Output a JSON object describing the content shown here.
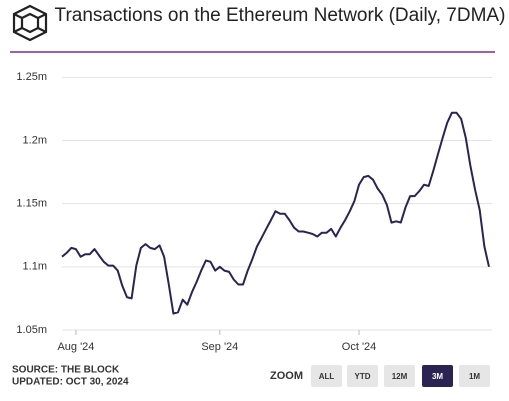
{
  "chart_data": {
    "type": "line",
    "title": "Transactions on the Ethereum Network (Daily, 7DMA)",
    "categories": [
      null,
      null,
      null,
      "Aug '24",
      null,
      null,
      null,
      null,
      null,
      null,
      null,
      null,
      null,
      null,
      null,
      null,
      null,
      null,
      null,
      null,
      null,
      null,
      null,
      null,
      null,
      null,
      null,
      null,
      null,
      null,
      null,
      null,
      null,
      null,
      "Sep '24",
      null,
      null,
      null,
      null,
      null,
      null,
      null,
      null,
      null,
      null,
      null,
      null,
      null,
      null,
      null,
      null,
      null,
      null,
      null,
      null,
      null,
      null,
      null,
      null,
      null,
      null,
      null,
      null,
      null,
      "Oct '24",
      null,
      null,
      null,
      null,
      null,
      null,
      null,
      null,
      null,
      null,
      null,
      null,
      null,
      null,
      null,
      null,
      null,
      null,
      null,
      null,
      null,
      null,
      null,
      null,
      null,
      null,
      null,
      null
    ],
    "series": [
      {
        "name": "Transactions",
        "color": "#2b2452",
        "values": [
          1108000,
          1111000,
          1115000,
          1114000,
          1108000,
          1110000,
          1110000,
          1114000,
          1109000,
          1104000,
          1101000,
          1101000,
          1097000,
          1085000,
          1076000,
          1075000,
          1101000,
          1115000,
          1118000,
          1115000,
          1114000,
          1117000,
          1108000,
          1086000,
          1063000,
          1064000,
          1074000,
          1070000,
          1080000,
          1088000,
          1097000,
          1105000,
          1104000,
          1097000,
          1100000,
          1097000,
          1096000,
          1090000,
          1086000,
          1086000,
          1097000,
          1106000,
          1116000,
          1123000,
          1130000,
          1137000,
          1144000,
          1142000,
          1142000,
          1137000,
          1131000,
          1128000,
          1128000,
          1127000,
          1126000,
          1124000,
          1127000,
          1127000,
          1130000,
          1124000,
          1131000,
          1137000,
          1144000,
          1152000,
          1165000,
          1171000,
          1172000,
          1169000,
          1162000,
          1157000,
          1149000,
          1135000,
          1136000,
          1135000,
          1147000,
          1156000,
          1156000,
          1160000,
          1165000,
          1164000,
          1176000,
          1189000,
          1202000,
          1214000,
          1222000,
          1222000,
          1217000,
          1202000,
          1180000,
          1161000,
          1145000,
          1116000,
          1100000
        ]
      }
    ],
    "ylim": [
      1050000,
      1255000
    ],
    "yticks": [
      {
        "value": 1050000,
        "label": "1.05m"
      },
      {
        "value": 1100000,
        "label": "1.1m"
      },
      {
        "value": 1150000,
        "label": "1.15m"
      },
      {
        "value": 1200000,
        "label": "1.2m"
      },
      {
        "value": 1250000,
        "label": "1.25m"
      }
    ],
    "grid": true,
    "source": "SOURCE: THE BLOCK",
    "updated": "UPDATED: OCT 30, 2024",
    "zoom": {
      "label": "ZOOM",
      "options": [
        "ALL",
        "YTD",
        "12M",
        "3M",
        "1M"
      ],
      "active": "3M"
    }
  }
}
